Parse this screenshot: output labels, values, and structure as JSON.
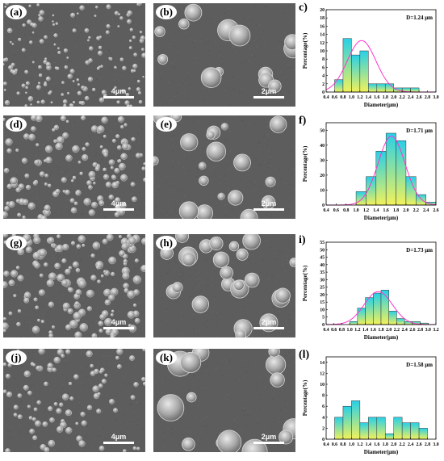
{
  "panels": [
    {
      "id": "a",
      "label": "(a)",
      "scale": "4μm"
    },
    {
      "id": "b",
      "label": "(b)",
      "scale": "2μm"
    },
    {
      "id": "c",
      "label": "c)"
    },
    {
      "id": "d",
      "label": "(d)",
      "scale": "4μm"
    },
    {
      "id": "e",
      "label": "(e)",
      "scale": "2μm"
    },
    {
      "id": "f",
      "label": "f)"
    },
    {
      "id": "g",
      "label": "(g)",
      "scale": "4μm"
    },
    {
      "id": "h",
      "label": "(h)",
      "scale": "2μm"
    },
    {
      "id": "i",
      "label": "i)"
    },
    {
      "id": "j",
      "label": "(j)",
      "scale": "4μm"
    },
    {
      "id": "k",
      "label": "(k)",
      "scale": "2μm"
    },
    {
      "id": "l",
      "label": "(l)"
    }
  ],
  "colors": {
    "bar_top": "#27d0e8",
    "bar_bottom": "#f2f25a",
    "fit_curve": "#ff33cc",
    "sem_bg": "#5d5d5d"
  },
  "chart_data": [
    {
      "type": "bar",
      "panel": "c",
      "annotation": "D=1.24 μm",
      "xlabel": "Diameter(μm)",
      "ylabel": "Percentage(%)",
      "x_ticks": [
        "0.4",
        "0.6",
        "0.8",
        "1.0",
        "1.2",
        "1.4",
        "1.6",
        "1.8",
        "2.0",
        "2.2",
        "2.4",
        "2.6",
        "2.8",
        "3.0"
      ],
      "x_range": [
        0.4,
        3.0
      ],
      "y_ticks": [
        "0",
        "2",
        "4",
        "6",
        "8",
        "10",
        "12",
        "14",
        "16",
        "18",
        "20"
      ],
      "ylim": [
        0,
        20
      ],
      "bin_width": 0.2,
      "bins": [
        0.6,
        0.8,
        1.0,
        1.2,
        1.4,
        1.6,
        1.8,
        2.0,
        2.2,
        2.4
      ],
      "values": [
        3,
        13,
        9,
        10,
        2,
        2,
        2,
        1,
        1,
        1
      ],
      "fit": {
        "mean": 1.24,
        "sd": 0.34,
        "peak": 12.5
      }
    },
    {
      "type": "bar",
      "panel": "f",
      "annotation": "D=1.71 μm",
      "xlabel": "Diameter(μm)",
      "ylabel": "Percentage(%)",
      "x_ticks": [
        "0.4",
        "0.6",
        "0.8",
        "1.0",
        "1.2",
        "1.4",
        "1.6",
        "1.8",
        "2.0",
        "2.2",
        "2.4",
        "2.6"
      ],
      "x_range": [
        0.4,
        2.6
      ],
      "y_ticks": [
        "0",
        "10",
        "20",
        "30",
        "40",
        "50"
      ],
      "ylim": [
        0,
        55
      ],
      "bin_width": 0.2,
      "bins": [
        1.0,
        1.2,
        1.4,
        1.6,
        1.8,
        2.0,
        2.2,
        2.4
      ],
      "values": [
        9,
        19,
        36,
        48,
        43,
        19,
        7,
        2
      ],
      "fit": {
        "mean": 1.71,
        "sd": 0.27,
        "peak": 46
      }
    },
    {
      "type": "bar",
      "panel": "i",
      "annotation": "D=1.73 μm",
      "xlabel": "Diameter(μm)",
      "ylabel": "Percentage(%)",
      "x_ticks": [
        "0.4",
        "0.6",
        "0.8",
        "1.0",
        "1.2",
        "1.4",
        "1.6",
        "1.8",
        "2.0",
        "2.2",
        "2.4",
        "2.6",
        "2.8",
        "3.0",
        "3.2"
      ],
      "x_range": [
        0.4,
        3.2
      ],
      "y_ticks": [
        "0",
        "5",
        "10",
        "15",
        "20",
        "25",
        "30",
        "35",
        "40",
        "45",
        "50",
        "55"
      ],
      "ylim": [
        0,
        55
      ],
      "bin_width": 0.2,
      "bins": [
        1.0,
        1.2,
        1.4,
        1.6,
        1.8,
        2.0,
        2.2,
        2.4,
        2.6,
        2.8
      ],
      "values": [
        2,
        11,
        18,
        21,
        23,
        9,
        4,
        2,
        2,
        1
      ],
      "fit": {
        "mean": 1.73,
        "sd": 0.36,
        "peak": 22
      }
    },
    {
      "type": "bar",
      "panel": "l",
      "annotation": "D=1.58 μm",
      "xlabel": "Diameter(μm)",
      "ylabel": "Percentage(%)",
      "x_ticks": [
        "0.4",
        "0.6",
        "0.8",
        "1.0",
        "1.2",
        "1.4",
        "1.6",
        "1.8",
        "2.0",
        "2.2",
        "2.4",
        "2.6",
        "2.8",
        "3.0"
      ],
      "x_range": [
        0.4,
        3.0
      ],
      "y_ticks": [
        "0",
        "2",
        "4",
        "6",
        "8",
        "10",
        "12",
        "14"
      ],
      "ylim": [
        0,
        15
      ],
      "bin_width": 0.2,
      "bins": [
        0.6,
        0.8,
        1.0,
        1.2,
        1.4,
        1.6,
        1.8,
        2.0,
        2.2,
        2.4,
        2.6
      ],
      "values": [
        4,
        6,
        7,
        3,
        4,
        4,
        1,
        4,
        3,
        3,
        2
      ]
    }
  ]
}
